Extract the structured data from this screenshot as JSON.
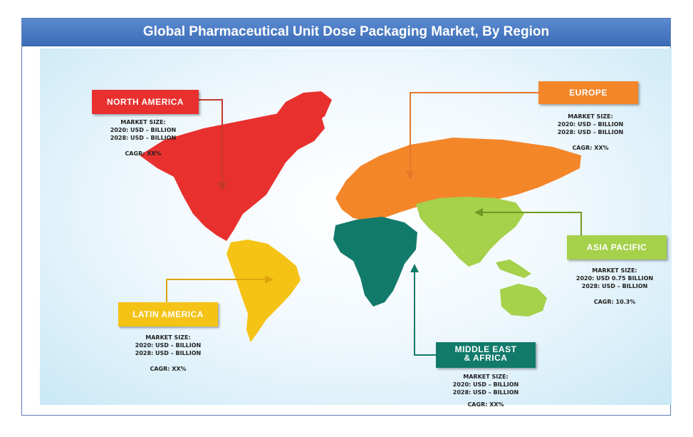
{
  "title": "Global Pharmaceutical Unit Dose Packaging Market, By Region",
  "colors": {
    "north_america": "#e8302e",
    "europe": "#f4862a",
    "asia_pacific": "#a5d14b",
    "latin_america": "#f5c316",
    "middle_east_africa": "#127a6b"
  },
  "regions": {
    "north_america": {
      "name": "NORTH AMERICA",
      "market_size": "MARKET  SIZE:",
      "y2020": "2020: USD – BILLION",
      "y2028": "2028: USD – BILLION",
      "cagr": "CAGR:  XX%"
    },
    "europe": {
      "name": "EUROPE",
      "market_size": "MARKET  SIZE:",
      "y2020": "2020: USD – BILLION",
      "y2028": "2028: USD – BILLION",
      "cagr": "CAGR:  XX%"
    },
    "asia_pacific": {
      "name": "ASIA PACIFIC",
      "market_size": "MARKET  SIZE:",
      "y2020": "2020: USD 0.75  BILLION",
      "y2028": "2028: USD – BILLION",
      "cagr": "CAGR:  10.3%"
    },
    "latin_america": {
      "name": "LATIN  AMERICA",
      "market_size": "MARKET  SIZE:",
      "y2020": "2020: USD – BILLION",
      "y2028": "2028: USD – BILLION",
      "cagr": "CAGR:  XX%"
    },
    "middle_east_africa": {
      "name_line1": "MIDDLE EAST",
      "name_line2": "& AFRICA",
      "market_size": "MARKET  SIZE:",
      "y2020": "2020: USD – BILLION",
      "y2028": "2028: USD – BILLION",
      "cagr": "CAGR:  XX%"
    }
  }
}
